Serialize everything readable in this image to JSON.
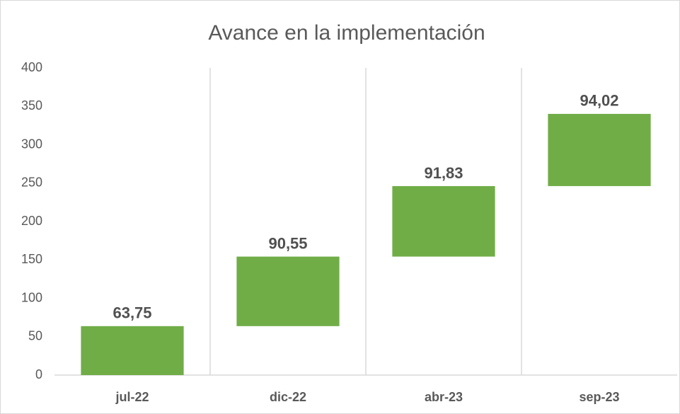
{
  "chart_data": {
    "type": "waterfall",
    "title": "Avance en la implementación",
    "categories": [
      "jul-22",
      "dic-22",
      "abr-23",
      "sep-23"
    ],
    "values": [
      63.75,
      90.55,
      91.83,
      94.02
    ],
    "value_labels": [
      "63,75",
      "90,55",
      "91,83",
      "94,02"
    ],
    "color": "#70ad47",
    "ylim": [
      0,
      400
    ],
    "yticks": [
      0,
      50,
      100,
      150,
      200,
      250,
      300,
      350,
      400
    ]
  }
}
